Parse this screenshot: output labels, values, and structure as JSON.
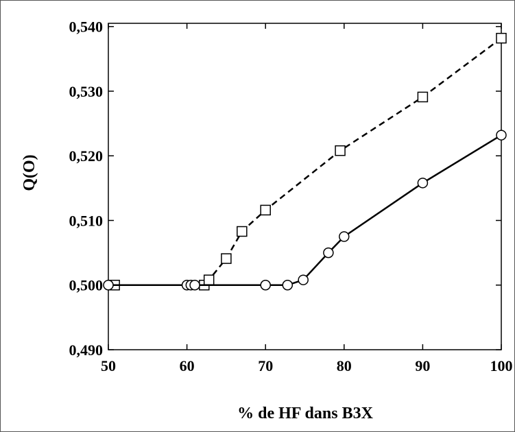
{
  "chart_data": {
    "type": "line",
    "xlabel": "% de HF dans B3X",
    "ylabel": "Q(O)",
    "xlim": [
      50,
      100
    ],
    "ylim": [
      0.49,
      0.5405
    ],
    "xticks": [
      50,
      60,
      70,
      80,
      90,
      100
    ],
    "xtick_labels": [
      "50",
      "60",
      "70",
      "80",
      "90",
      "100"
    ],
    "yticks": [
      0.49,
      0.5,
      0.51,
      0.52,
      0.53,
      0.54
    ],
    "ytick_labels": [
      "0,490",
      "0,500",
      "0,510",
      "0,520",
      "0,530",
      "0,540"
    ],
    "grid": false,
    "legend": "none",
    "series": [
      {
        "marker": "square",
        "line_style": "dashed",
        "color": "#000000",
        "x": [
          50.8,
          62.2,
          62.8,
          65.0,
          67.0,
          70.0,
          79.5,
          90.0,
          100.0
        ],
        "y": [
          0.5,
          0.5,
          0.5008,
          0.5041,
          0.5083,
          0.5116,
          0.5208,
          0.5291,
          0.5382
        ]
      },
      {
        "marker": "circle",
        "line_style": "solid",
        "color": "#000000",
        "x": [
          50.0,
          60.0,
          60.5,
          61.0,
          70.0,
          72.8,
          74.8,
          78.0,
          80.0,
          90.0,
          100.0
        ],
        "y": [
          0.5,
          0.5,
          0.5,
          0.5,
          0.5,
          0.5,
          0.5008,
          0.505,
          0.5075,
          0.5158,
          0.5232
        ]
      }
    ]
  }
}
